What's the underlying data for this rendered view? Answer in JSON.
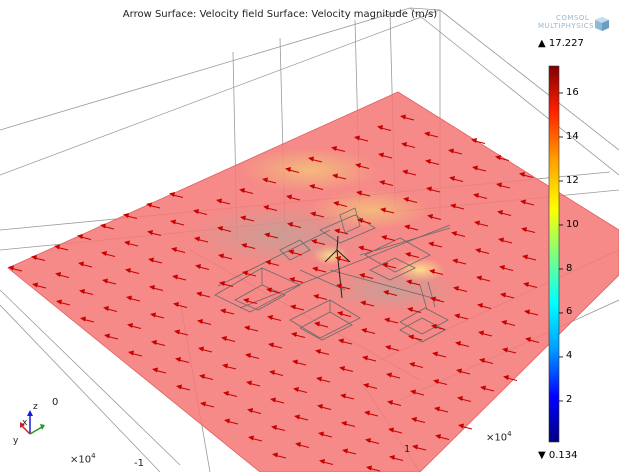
{
  "title": "Arrow Surface: Velocity field  Surface: Velocity magnitude (m/s)",
  "logo": {
    "line1": "COMSOL",
    "line2": "MULTIPHYSICS",
    "icon": "comsol-cube-icon"
  },
  "colorbar": {
    "max_label": "▲ 17.227",
    "min_label": "▼ 0.134",
    "max": 17.227,
    "min": 0.134,
    "ticks": [
      "16",
      "14",
      "12",
      "10",
      "8",
      "6",
      "4",
      "2"
    ],
    "tick_values": [
      16,
      14,
      12,
      10,
      8,
      6,
      4,
      2
    ],
    "colors": [
      "#000080",
      "#0000ff",
      "#00a0ff",
      "#00ffff",
      "#80ff80",
      "#ffff00",
      "#ffa000",
      "#ff2000",
      "#800000"
    ]
  },
  "axes": {
    "tick_zero": "0",
    "tick_one": "1",
    "tick_minus_one": "-1",
    "exponent_left": "×10",
    "exponent_left_sup": "4",
    "exponent_right": "×10",
    "exponent_right_sup": "4"
  },
  "triad": {
    "z": "z",
    "x": "x",
    "y": "y"
  },
  "surface_color": "#f47a78",
  "arrow_color": "#c80000"
}
